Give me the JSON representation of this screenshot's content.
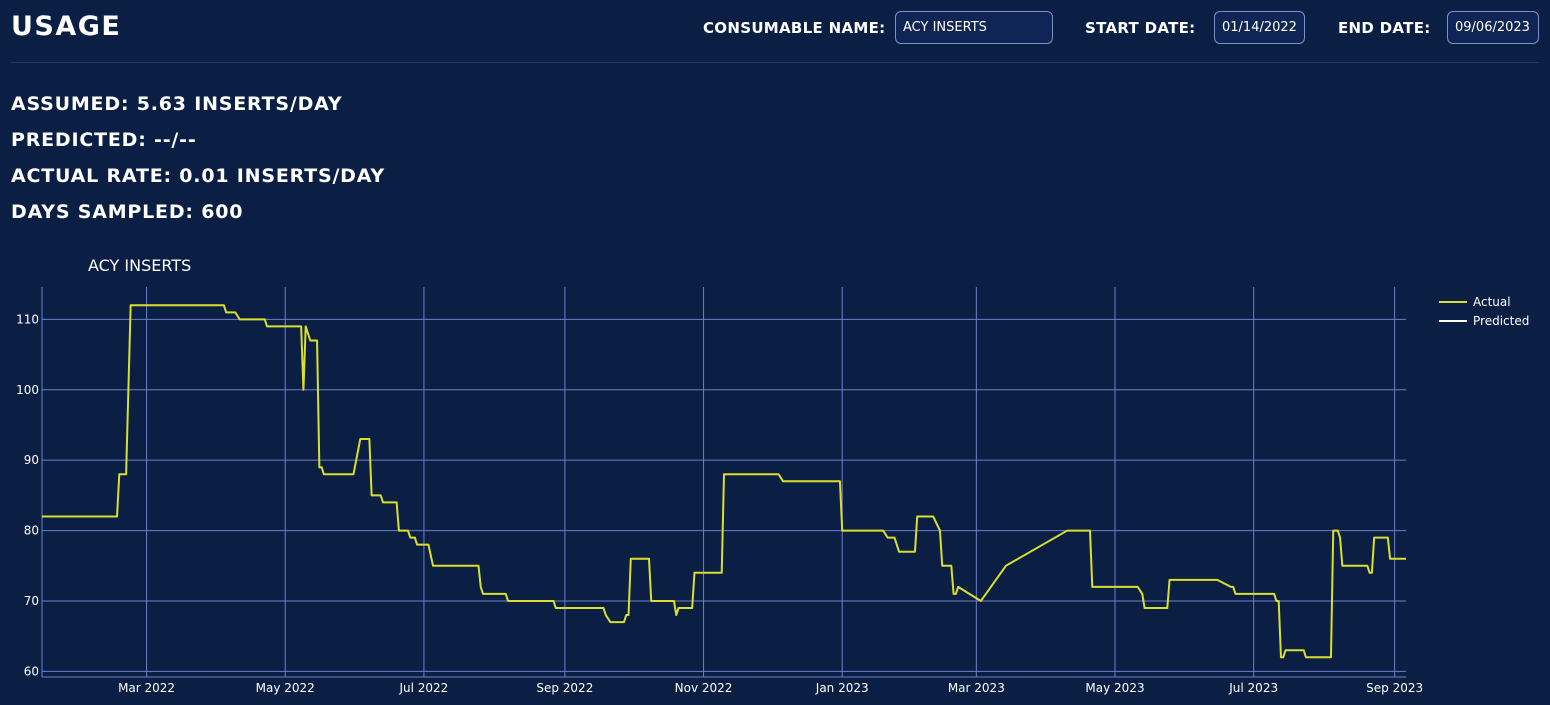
{
  "header": {
    "title": "USAGE",
    "consumable_label": "CONSUMABLE NAME:",
    "consumable_value": "ACY INSERTS",
    "start_label": "START DATE:",
    "start_value": "01/14/2022",
    "end_label": "END DATE:",
    "end_value": "09/06/2023"
  },
  "stats": {
    "assumed": "ASSUMED: 5.63 INSERTS/DAY",
    "predicted": "PREDICTED: --/--",
    "actual_rate": "ACTUAL RATE: 0.01 INSERTS/DAY",
    "days_sampled": "DAYS SAMPLED: 600"
  },
  "colors": {
    "background": "#0b1f45",
    "grid": "#6c7fc9",
    "actual": "#d9df2c",
    "predicted": "#ffffff"
  },
  "chart_data": {
    "type": "line",
    "title": "ACY INSERTS",
    "xlabel": "",
    "ylabel": "",
    "x_range": [
      "2022-01-14",
      "2023-09-06"
    ],
    "ylim": [
      59.2,
      114.6
    ],
    "x_ticks": [
      {
        "date": "2022-03-01",
        "label": "Mar 2022"
      },
      {
        "date": "2022-05-01",
        "label": "May 2022"
      },
      {
        "date": "2022-07-01",
        "label": "Jul 2022"
      },
      {
        "date": "2022-09-01",
        "label": "Sep 2022"
      },
      {
        "date": "2022-11-01",
        "label": "Nov 2022"
      },
      {
        "date": "2023-01-01",
        "label": "Jan 2023"
      },
      {
        "date": "2023-03-01",
        "label": "Mar 2023"
      },
      {
        "date": "2023-05-01",
        "label": "May 2023"
      },
      {
        "date": "2023-07-01",
        "label": "Jul 2023"
      },
      {
        "date": "2023-09-01",
        "label": "Sep 2023"
      }
    ],
    "y_ticks": [
      60,
      70,
      80,
      90,
      100,
      110
    ],
    "grid": true,
    "legend": "top-right",
    "series": [
      {
        "name": "Actual",
        "color": "#d9df2c",
        "points": [
          [
            "2022-01-14",
            82
          ],
          [
            "2022-02-16",
            82
          ],
          [
            "2022-02-17",
            88
          ],
          [
            "2022-02-20",
            88
          ],
          [
            "2022-02-22",
            112
          ],
          [
            "2022-04-04",
            112
          ],
          [
            "2022-04-05",
            111
          ],
          [
            "2022-04-09",
            111
          ],
          [
            "2022-04-11",
            110
          ],
          [
            "2022-04-22",
            110
          ],
          [
            "2022-04-23",
            109
          ],
          [
            "2022-05-07",
            109
          ],
          [
            "2022-05-08",
            109
          ],
          [
            "2022-05-09",
            100
          ],
          [
            "2022-05-10",
            109
          ],
          [
            "2022-05-12",
            107
          ],
          [
            "2022-05-15",
            107
          ],
          [
            "2022-05-16",
            89
          ],
          [
            "2022-05-17",
            89
          ],
          [
            "2022-05-18",
            88
          ],
          [
            "2022-05-31",
            88
          ],
          [
            "2022-06-03",
            93
          ],
          [
            "2022-06-07",
            93
          ],
          [
            "2022-06-08",
            85
          ],
          [
            "2022-06-12",
            85
          ],
          [
            "2022-06-13",
            84
          ],
          [
            "2022-06-19",
            84
          ],
          [
            "2022-06-20",
            80
          ],
          [
            "2022-06-24",
            80
          ],
          [
            "2022-06-25",
            79
          ],
          [
            "2022-06-27",
            79
          ],
          [
            "2022-06-28",
            78
          ],
          [
            "2022-07-03",
            78
          ],
          [
            "2022-07-05",
            75
          ],
          [
            "2022-07-25",
            75
          ],
          [
            "2022-07-26",
            72
          ],
          [
            "2022-07-27",
            71
          ],
          [
            "2022-08-06",
            71
          ],
          [
            "2022-08-07",
            70
          ],
          [
            "2022-08-27",
            70
          ],
          [
            "2022-08-28",
            69
          ],
          [
            "2022-09-18",
            69
          ],
          [
            "2022-09-19",
            68
          ],
          [
            "2022-09-21",
            67
          ],
          [
            "2022-09-27",
            67
          ],
          [
            "2022-09-28",
            68
          ],
          [
            "2022-09-29",
            68
          ],
          [
            "2022-09-30",
            76
          ],
          [
            "2022-10-08",
            76
          ],
          [
            "2022-10-09",
            70
          ],
          [
            "2022-10-19",
            70
          ],
          [
            "2022-10-20",
            68
          ],
          [
            "2022-10-21",
            69
          ],
          [
            "2022-10-27",
            69
          ],
          [
            "2022-10-28",
            74
          ],
          [
            "2022-11-09",
            74
          ],
          [
            "2022-11-10",
            88
          ],
          [
            "2022-12-04",
            88
          ],
          [
            "2022-12-06",
            87
          ],
          [
            "2022-12-31",
            87
          ],
          [
            "2023-01-01",
            80
          ],
          [
            "2023-01-19",
            80
          ],
          [
            "2023-01-21",
            79
          ],
          [
            "2023-01-24",
            79
          ],
          [
            "2023-01-26",
            77
          ],
          [
            "2023-02-02",
            77
          ],
          [
            "2023-02-03",
            82
          ],
          [
            "2023-02-10",
            82
          ],
          [
            "2023-02-13",
            80
          ],
          [
            "2023-02-14",
            75
          ],
          [
            "2023-02-18",
            75
          ],
          [
            "2023-02-19",
            71
          ],
          [
            "2023-02-20",
            71
          ],
          [
            "2023-02-21",
            72
          ],
          [
            "2023-03-03",
            70
          ],
          [
            "2023-03-14",
            75
          ],
          [
            "2023-04-10",
            80
          ],
          [
            "2023-04-20",
            80
          ],
          [
            "2023-04-21",
            72
          ],
          [
            "2023-05-11",
            72
          ],
          [
            "2023-05-13",
            71
          ],
          [
            "2023-05-14",
            69
          ],
          [
            "2023-05-24",
            69
          ],
          [
            "2023-05-25",
            73
          ],
          [
            "2023-06-15",
            73
          ],
          [
            "2023-06-21",
            72
          ],
          [
            "2023-06-22",
            72
          ],
          [
            "2023-06-23",
            71
          ],
          [
            "2023-07-10",
            71
          ],
          [
            "2023-07-11",
            70
          ],
          [
            "2023-07-12",
            70
          ],
          [
            "2023-07-13",
            62
          ],
          [
            "2023-07-14",
            62
          ],
          [
            "2023-07-15",
            63
          ],
          [
            "2023-07-23",
            63
          ],
          [
            "2023-07-24",
            62
          ],
          [
            "2023-08-04",
            62
          ],
          [
            "2023-08-05",
            80
          ],
          [
            "2023-08-07",
            80
          ],
          [
            "2023-08-08",
            79
          ],
          [
            "2023-08-09",
            75
          ],
          [
            "2023-08-20",
            75
          ],
          [
            "2023-08-21",
            74
          ],
          [
            "2023-08-22",
            74
          ],
          [
            "2023-08-23",
            79
          ],
          [
            "2023-08-29",
            79
          ],
          [
            "2023-08-30",
            76
          ],
          [
            "2023-09-06",
            76
          ]
        ]
      },
      {
        "name": "Predicted",
        "color": "#ffffff",
        "points": []
      }
    ]
  }
}
